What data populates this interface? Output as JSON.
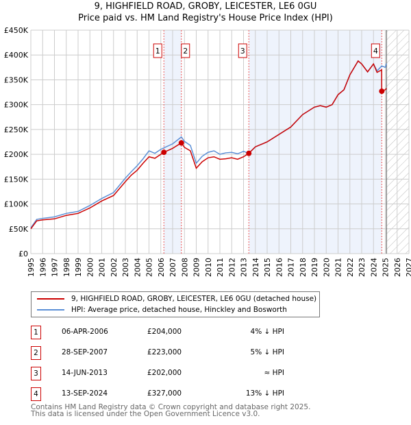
{
  "chart_data": {
    "type": "line",
    "title": "9, HIGHFIELD ROAD, GROBY, LEICESTER, LE6 0GU",
    "subtitle": "Price paid vs. HM Land Registry's House Price Index (HPI)",
    "xlim": [
      1995,
      2027
    ],
    "ylim": [
      0,
      450000
    ],
    "yticks": [
      {
        "v": 0,
        "label": "£0"
      },
      {
        "v": 50000,
        "label": "£50K"
      },
      {
        "v": 100000,
        "label": "£100K"
      },
      {
        "v": 150000,
        "label": "£150K"
      },
      {
        "v": 200000,
        "label": "£200K"
      },
      {
        "v": 250000,
        "label": "£250K"
      },
      {
        "v": 300000,
        "label": "£300K"
      },
      {
        "v": 350000,
        "label": "£350K"
      },
      {
        "v": 400000,
        "label": "£400K"
      },
      {
        "v": 450000,
        "label": "£450K"
      }
    ],
    "xticks": [
      "1995",
      "1996",
      "1997",
      "1998",
      "1999",
      "2000",
      "2001",
      "2002",
      "2003",
      "2004",
      "2005",
      "2006",
      "2007",
      "2008",
      "2009",
      "2010",
      "2011",
      "2012",
      "2013",
      "2014",
      "2015",
      "2016",
      "2017",
      "2018",
      "2019",
      "2020",
      "2021",
      "2022",
      "2023",
      "2024",
      "2025",
      "2026",
      "2027"
    ],
    "grid": true,
    "forecast_from": 2025.1,
    "series": [
      {
        "name": "9, HIGHFIELD ROAD, GROBY, LEICESTER, LE6 0GU (detached house)",
        "color": "#cc0000",
        "x": [
          1995,
          1995.5,
          1996,
          1997,
          1998,
          1999,
          2000,
          2001,
          2002,
          2003,
          2003.5,
          2004,
          2004.5,
          2005,
          2005.5,
          2006,
          2006.26,
          2007,
          2007.74,
          2008,
          2008.5,
          2009,
          2009.5,
          2010,
          2010.5,
          2011,
          2011.5,
          2012,
          2012.5,
          2013,
          2013.45,
          2014,
          2015,
          2016,
          2017,
          2018,
          2019,
          2019.5,
          2020,
          2020.5,
          2021,
          2021.5,
          2022,
          2022.7,
          2023,
          2023.5,
          2024,
          2024.3,
          2024.69,
          2024.7,
          2025,
          2025.1
        ],
        "y": [
          50000,
          66000,
          68000,
          70000,
          77000,
          81000,
          92000,
          106000,
          117000,
          145000,
          158000,
          168000,
          182000,
          195000,
          192000,
          200000,
          204000,
          212000,
          223000,
          214000,
          207000,
          172000,
          185000,
          193000,
          195000,
          190000,
          191000,
          193000,
          190000,
          195000,
          202000,
          215000,
          225000,
          240000,
          255000,
          280000,
          295000,
          298000,
          295000,
          300000,
          320000,
          330000,
          360000,
          388000,
          382000,
          366000,
          382000,
          365000,
          370000,
          327000,
          330000,
          333000
        ]
      },
      {
        "name": "HPI: Average price, detached house, Hinckley and Bosworth",
        "color": "#5b8fd6",
        "x": [
          1995,
          1995.5,
          1996,
          1997,
          1998,
          1999,
          2000,
          2001,
          2002,
          2003,
          2003.5,
          2004,
          2004.5,
          2005,
          2005.5,
          2006,
          2006.26,
          2007,
          2007.74,
          2008,
          2008.5,
          2009,
          2009.5,
          2010,
          2010.5,
          2011,
          2011.5,
          2012,
          2012.5,
          2013,
          2013.45,
          2014,
          2015,
          2016,
          2017,
          2018,
          2019,
          2019.5,
          2020,
          2020.5,
          2021,
          2021.5,
          2022,
          2022.7,
          2023,
          2023.5,
          2024,
          2024.3,
          2024.7,
          2025,
          2025.1
        ],
        "y": [
          52000,
          69000,
          71000,
          74000,
          81000,
          85000,
          97000,
          111000,
          123000,
          152000,
          165000,
          177000,
          191000,
          207000,
          202000,
          210000,
          213000,
          221000,
          235000,
          226000,
          218000,
          182000,
          196000,
          204000,
          207000,
          200000,
          203000,
          204000,
          201000,
          206000,
          202000,
          215000,
          225000,
          240000,
          255000,
          280000,
          295000,
          298000,
          295000,
          300000,
          320000,
          330000,
          360000,
          388000,
          382000,
          366000,
          382000,
          368000,
          378000,
          375000,
          383000
        ]
      }
    ],
    "sales": [
      {
        "n": "1",
        "x": 2006.26,
        "y": 204000,
        "date": "06-APR-2006",
        "price": "£204,000",
        "hpi": "4% ↓ HPI"
      },
      {
        "n": "2",
        "x": 2007.74,
        "y": 223000,
        "date": "28-SEP-2007",
        "price": "£223,000",
        "hpi": "5% ↓ HPI"
      },
      {
        "n": "3",
        "x": 2013.45,
        "y": 202000,
        "date": "14-JUN-2013",
        "price": "£202,000",
        "hpi": "≈ HPI"
      },
      {
        "n": "4",
        "x": 2024.7,
        "y": 327000,
        "date": "13-SEP-2024",
        "price": "£327,000",
        "hpi": "13% ↓ HPI"
      }
    ]
  },
  "footer": [
    "Contains HM Land Registry data © Crown copyright and database right 2025.",
    "This data is licensed under the Open Government Licence v3.0."
  ]
}
